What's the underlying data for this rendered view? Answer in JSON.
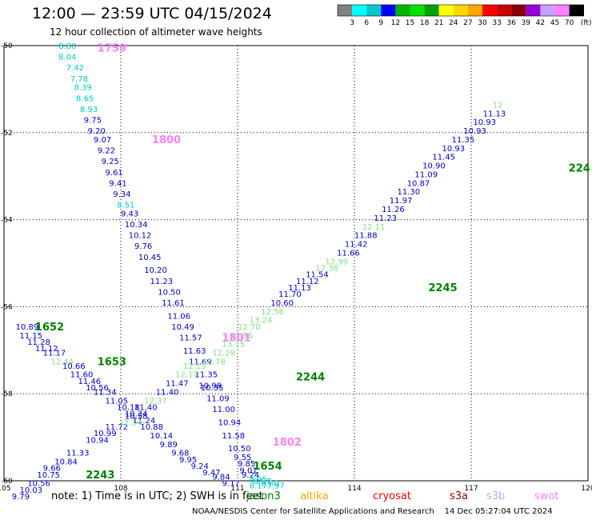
{
  "header": {
    "title": "12:00 — 23:59 UTC 04/15/2024",
    "subtitle": "12 hour collection of altimeter wave heights"
  },
  "color_scale": {
    "labels": [
      "3",
      "6",
      "9",
      "12",
      "15",
      "18",
      "21",
      "24",
      "27",
      "30",
      "33",
      "36",
      "39",
      "42",
      "45",
      "70"
    ],
    "unit": "(ft)",
    "colors": [
      "#808080",
      "#00ffff",
      "#00c8c8",
      "#0000ff",
      "#00b400",
      "#00e000",
      "#00a000",
      "#ffff00",
      "#ffd700",
      "#ffa500",
      "#ff0000",
      "#c80000",
      "#8b0000",
      "#9400d3",
      "#c8a0ff",
      "#ff80ff",
      "#000000"
    ]
  },
  "footer": {
    "note": "note:  1) Time is in UTC;  2) SWH is in feet",
    "satellites": [
      {
        "name": "jason3",
        "color": "#008000"
      },
      {
        "name": "altika",
        "color": "#ffa500"
      },
      {
        "name": "cryosat",
        "color": "#ff0000"
      },
      {
        "name": "s3a",
        "color": "#8b0000"
      },
      {
        "name": "s3b",
        "color": "#c8a0ff"
      },
      {
        "name": "swot",
        "color": "#ff80ff"
      }
    ],
    "credit": "NOAA/NESDIS Center for Satellite Applications and Research",
    "timestamp": "14 Dec 05:27:04 UTC 2024"
  },
  "chart_data": {
    "type": "scatter",
    "title": "12:00 — 23:59 UTC 04/15/2024",
    "subtitle": "12 hour collection of altimeter wave heights",
    "xlabel": "",
    "ylabel": "",
    "xlim": [
      105,
      120
    ],
    "ylim": [
      -60,
      -50
    ],
    "grid": true,
    "x_ticks": [
      "105",
      "108",
      "111",
      "114",
      "117",
      "120"
    ],
    "y_ticks": [
      "-50",
      "-52",
      "-54",
      "-56",
      "-58",
      "-60"
    ],
    "legend": "bottom",
    "passes": [
      {
        "name": "swot",
        "color": "#ff80ff",
        "time_labels": [
          {
            "text": "1759",
            "x": 107.4,
            "y": -50.05
          },
          {
            "text": "1800",
            "x": 108.8,
            "y": -52.15
          },
          {
            "text": "1801",
            "x": 110.6,
            "y": -56.7
          },
          {
            "text": "1802",
            "x": 111.9,
            "y": -59.1
          }
        ],
        "points": [
          {
            "x": 106.4,
            "y": -50.0,
            "v": "8.80",
            "c": "#00c8c8"
          },
          {
            "x": 106.4,
            "y": -50.25,
            "v": "8.04",
            "c": "#00c8c8"
          },
          {
            "x": 106.6,
            "y": -50.5,
            "v": "7.42",
            "c": "#00c8c8"
          },
          {
            "x": 106.7,
            "y": -50.75,
            "v": "7.78",
            "c": "#00c8c8"
          },
          {
            "x": 106.8,
            "y": -50.95,
            "v": "8.39",
            "c": "#00c8c8"
          },
          {
            "x": 106.85,
            "y": -51.2,
            "v": "8.65",
            "c": "#00c8c8"
          },
          {
            "x": 106.95,
            "y": -51.45,
            "v": "8.93",
            "c": "#00c8c8"
          },
          {
            "x": 107.05,
            "y": -51.7,
            "v": "9.75",
            "c": "#0000c8"
          },
          {
            "x": 107.15,
            "y": -51.95,
            "v": "9.20",
            "c": "#0000c8"
          },
          {
            "x": 107.3,
            "y": -52.15,
            "v": "9.07",
            "c": "#0000c8"
          },
          {
            "x": 107.4,
            "y": -52.4,
            "v": "9.22",
            "c": "#0000c8"
          },
          {
            "x": 107.5,
            "y": -52.65,
            "v": "9.25",
            "c": "#0000c8"
          },
          {
            "x": 107.6,
            "y": -52.9,
            "v": "9.61",
            "c": "#0000c8"
          },
          {
            "x": 107.7,
            "y": -53.15,
            "v": "9.41",
            "c": "#0000c8"
          },
          {
            "x": 107.8,
            "y": -53.4,
            "v": "9.34",
            "c": "#0000c8"
          },
          {
            "x": 107.9,
            "y": -53.65,
            "v": "8.51",
            "c": "#00c8c8"
          },
          {
            "x": 108.0,
            "y": -53.85,
            "v": "9.43",
            "c": "#0000c8"
          },
          {
            "x": 108.1,
            "y": -54.1,
            "v": "10.34",
            "c": "#0000c8"
          },
          {
            "x": 108.2,
            "y": -54.35,
            "v": "10.12",
            "c": "#0000c8"
          },
          {
            "x": 108.35,
            "y": -54.6,
            "v": "9.76",
            "c": "#0000c8"
          },
          {
            "x": 108.45,
            "y": -54.85,
            "v": "10.45",
            "c": "#0000c8"
          },
          {
            "x": 108.6,
            "y": -55.15,
            "v": "10.20",
            "c": "#0000c8"
          },
          {
            "x": 108.75,
            "y": -55.4,
            "v": "11.23",
            "c": "#0000c8"
          },
          {
            "x": 108.95,
            "y": -55.65,
            "v": "10.50",
            "c": "#0000c8"
          },
          {
            "x": 109.05,
            "y": -55.9,
            "v": "11.61",
            "c": "#0000c8"
          },
          {
            "x": 109.2,
            "y": -56.2,
            "v": "11.06",
            "c": "#0000c8"
          },
          {
            "x": 109.3,
            "y": -56.45,
            "v": "10.49",
            "c": "#0000c8"
          },
          {
            "x": 109.5,
            "y": -56.7,
            "v": "11.57",
            "c": "#0000c8"
          },
          {
            "x": 109.6,
            "y": -57.0,
            "v": "11.63",
            "c": "#0000c8"
          },
          {
            "x": 109.75,
            "y": -57.25,
            "v": "11.69",
            "c": "#0000c8"
          },
          {
            "x": 109.9,
            "y": -57.55,
            "v": "11.35",
            "c": "#0000c8"
          },
          {
            "x": 110.0,
            "y": -57.8,
            "v": "10.98",
            "c": "#0000c8"
          },
          {
            "x": 110.05,
            "y": -57.85,
            "v": "10.35",
            "c": "#0000c8"
          },
          {
            "x": 110.2,
            "y": -58.1,
            "v": "11.09",
            "c": "#0000c8"
          },
          {
            "x": 110.35,
            "y": -58.35,
            "v": "11.00",
            "c": "#0000c8"
          },
          {
            "x": 110.5,
            "y": -58.65,
            "v": "10.94",
            "c": "#0000c8"
          },
          {
            "x": 110.6,
            "y": -58.95,
            "v": "11.58",
            "c": "#0000c8"
          },
          {
            "x": 110.75,
            "y": -59.25,
            "v": "10.50",
            "c": "#0000c8"
          },
          {
            "x": 110.9,
            "y": -59.45,
            "v": "9.55",
            "c": "#0000c8"
          },
          {
            "x": 111.0,
            "y": -59.6,
            "v": "9.85",
            "c": "#0000c8"
          },
          {
            "x": 111.05,
            "y": -59.75,
            "v": "9.01",
            "c": "#0000c8"
          },
          {
            "x": 111.1,
            "y": -59.85,
            "v": "9.24",
            "c": "#0000c8"
          },
          {
            "x": 111.3,
            "y": -59.95,
            "v": "8.95",
            "c": "#00c8c8"
          },
          {
            "x": 111.4,
            "y": -60.0,
            "v": "8.67",
            "c": "#00c8c8"
          },
          {
            "x": 111.6,
            "y": -60.05,
            "v": "8.80",
            "c": "#00c8c8"
          },
          {
            "x": 111.75,
            "y": -60.1,
            "v": "7.97",
            "c": "#00c8c8"
          },
          {
            "x": 111.3,
            "y": -60.1,
            "v": "8.17",
            "c": "#00c8c8"
          }
        ]
      },
      {
        "name": "jason3-1652",
        "color": "#008000",
        "time_labels": [
          {
            "text": "1652",
            "x": 105.8,
            "y": -56.45
          },
          {
            "text": "1653",
            "x": 107.4,
            "y": -57.25
          },
          {
            "text": "1654",
            "x": 111.4,
            "y": -59.65
          }
        ],
        "points": [
          {
            "x": 105.3,
            "y": -56.45,
            "v": "10.89",
            "c": "#0000c8"
          },
          {
            "x": 105.4,
            "y": -56.65,
            "v": "11.15",
            "c": "#0000c8"
          },
          {
            "x": 105.6,
            "y": -56.8,
            "v": "11.28",
            "c": "#0000c8"
          },
          {
            "x": 105.8,
            "y": -56.95,
            "v": "11.12",
            "c": "#0000c8"
          },
          {
            "x": 106.0,
            "y": -57.05,
            "v": "11.17",
            "c": "#0000c8"
          },
          {
            "x": 106.2,
            "y": -57.25,
            "v": "12.44",
            "c": "#80e080"
          },
          {
            "x": 106.5,
            "y": -57.35,
            "v": "10.66",
            "c": "#0000c8"
          },
          {
            "x": 106.7,
            "y": -57.55,
            "v": "11.60",
            "c": "#0000c8"
          },
          {
            "x": 106.9,
            "y": -57.7,
            "v": "11.46",
            "c": "#0000c8"
          },
          {
            "x": 107.1,
            "y": -57.85,
            "v": "10.56",
            "c": "#0000c8"
          },
          {
            "x": 107.3,
            "y": -57.95,
            "v": "11.34",
            "c": "#0000c8"
          },
          {
            "x": 107.6,
            "y": -58.15,
            "v": "11.05",
            "c": "#0000c8"
          },
          {
            "x": 107.9,
            "y": -58.3,
            "v": "10.18",
            "c": "#0000c8"
          },
          {
            "x": 108.1,
            "y": -58.45,
            "v": "10.34",
            "c": "#0000c8"
          },
          {
            "x": 108.3,
            "y": -58.6,
            "v": "11.24",
            "c": "#0000c8"
          },
          {
            "x": 108.5,
            "y": -58.75,
            "v": "10.88",
            "c": "#0000c8"
          },
          {
            "x": 108.75,
            "y": -58.95,
            "v": "10.14",
            "c": "#0000c8"
          },
          {
            "x": 109.0,
            "y": -59.15,
            "v": "9.89",
            "c": "#0000c8"
          },
          {
            "x": 109.3,
            "y": -59.35,
            "v": "9.68",
            "c": "#0000c8"
          },
          {
            "x": 109.5,
            "y": -59.5,
            "v": "9.95",
            "c": "#0000c8"
          },
          {
            "x": 109.8,
            "y": -59.65,
            "v": "9.24",
            "c": "#0000c8"
          },
          {
            "x": 110.1,
            "y": -59.8,
            "v": "9.47",
            "c": "#0000c8"
          },
          {
            "x": 110.35,
            "y": -59.9,
            "v": "9.84",
            "c": "#0000c8"
          },
          {
            "x": 110.6,
            "y": -60.05,
            "v": "9.17",
            "c": "#0000c8"
          }
        ]
      },
      {
        "name": "jason3-2243",
        "color": "#008000",
        "time_labels": [
          {
            "text": "2243",
            "x": 107.1,
            "y": -59.85
          },
          {
            "text": "2244",
            "x": 112.5,
            "y": -57.6
          },
          {
            "text": "2245",
            "x": 115.9,
            "y": -55.55
          },
          {
            "text": "224",
            "x": 119.5,
            "y": -52.8
          }
        ],
        "points": [
          {
            "x": 105.2,
            "y": -60.35,
            "v": "9.79",
            "c": "#0000c8"
          },
          {
            "x": 105.4,
            "y": -60.2,
            "v": "10.03",
            "c": "#0000c8"
          },
          {
            "x": 105.6,
            "y": -60.05,
            "v": "10.56",
            "c": "#0000c8"
          },
          {
            "x": 105.85,
            "y": -59.85,
            "v": "10.75",
            "c": "#0000c8"
          },
          {
            "x": 106.0,
            "y": -59.7,
            "v": "9.66",
            "c": "#0000c8"
          },
          {
            "x": 106.3,
            "y": -59.55,
            "v": "10.84",
            "c": "#0000c8"
          },
          {
            "x": 106.6,
            "y": -59.35,
            "v": "11.33",
            "c": "#0000c8"
          },
          {
            "x": 107.1,
            "y": -59.05,
            "v": "10.94",
            "c": "#0000c8"
          },
          {
            "x": 107.3,
            "y": -58.9,
            "v": "10.99",
            "c": "#0000c8"
          },
          {
            "x": 107.6,
            "y": -58.75,
            "v": "11.72",
            "c": "#0000c8"
          },
          {
            "x": 107.95,
            "y": -58.65,
            "v": "12.14",
            "c": "#80e080"
          },
          {
            "x": 108.1,
            "y": -58.5,
            "v": "10.58",
            "c": "#0000c8"
          },
          {
            "x": 108.35,
            "y": -58.3,
            "v": "11.40",
            "c": "#0000c8"
          },
          {
            "x": 108.6,
            "y": -58.15,
            "v": "12.37",
            "c": "#80e080"
          },
          {
            "x": 108.9,
            "y": -57.95,
            "v": "11.40",
            "c": "#0000c8"
          },
          {
            "x": 109.15,
            "y": -57.75,
            "v": "11.47",
            "c": "#0000c8"
          },
          {
            "x": 109.4,
            "y": -57.55,
            "v": "12.17",
            "c": "#80e080"
          },
          {
            "x": 109.6,
            "y": -57.35,
            "v": "12.15",
            "c": "#80e080"
          },
          {
            "x": 110.1,
            "y": -57.25,
            "v": "12.78",
            "c": "#80e080"
          },
          {
            "x": 110.35,
            "y": -57.05,
            "v": "12.29",
            "c": "#80e080"
          },
          {
            "x": 110.6,
            "y": -56.85,
            "v": "13.15",
            "c": "#80e080"
          },
          {
            "x": 110.8,
            "y": -56.65,
            "v": "12.96",
            "c": "#80e080"
          },
          {
            "x": 111.0,
            "y": -56.45,
            "v": "12.70",
            "c": "#80e080"
          },
          {
            "x": 111.3,
            "y": -56.3,
            "v": "13.24",
            "c": "#80e080"
          },
          {
            "x": 111.6,
            "y": -56.1,
            "v": "12.56",
            "c": "#80e080"
          },
          {
            "x": 111.85,
            "y": -55.9,
            "v": "10.60",
            "c": "#0000c8"
          },
          {
            "x": 112.05,
            "y": -55.7,
            "v": "11.70",
            "c": "#0000c8"
          },
          {
            "x": 112.3,
            "y": -55.55,
            "v": "11.13",
            "c": "#0000c8"
          },
          {
            "x": 112.5,
            "y": -55.4,
            "v": "11.12",
            "c": "#0000c8"
          },
          {
            "x": 112.75,
            "y": -55.25,
            "v": "11.54",
            "c": "#0000c8"
          },
          {
            "x": 113.0,
            "y": -55.1,
            "v": "12.38",
            "c": "#80e080"
          },
          {
            "x": 113.25,
            "y": -54.95,
            "v": "12.99",
            "c": "#80e080"
          },
          {
            "x": 113.55,
            "y": -54.75,
            "v": "11.66",
            "c": "#0000c8"
          },
          {
            "x": 113.75,
            "y": -54.55,
            "v": "11.42",
            "c": "#0000c8"
          },
          {
            "x": 114.0,
            "y": -54.35,
            "v": "11.88",
            "c": "#0000c8"
          },
          {
            "x": 114.2,
            "y": -54.15,
            "v": "12.11",
            "c": "#80e080"
          },
          {
            "x": 114.5,
            "y": -53.95,
            "v": "11.23",
            "c": "#0000c8"
          },
          {
            "x": 114.7,
            "y": -53.75,
            "v": "11.26",
            "c": "#0000c8"
          },
          {
            "x": 114.9,
            "y": -53.55,
            "v": "11.97",
            "c": "#0000c8"
          },
          {
            "x": 115.1,
            "y": -53.35,
            "v": "11.30",
            "c": "#0000c8"
          },
          {
            "x": 115.35,
            "y": -53.15,
            "v": "10.87",
            "c": "#0000c8"
          },
          {
            "x": 115.55,
            "y": -52.95,
            "v": "11.09",
            "c": "#0000c8"
          },
          {
            "x": 115.75,
            "y": -52.75,
            "v": "10.90",
            "c": "#0000c8"
          },
          {
            "x": 116.0,
            "y": -52.55,
            "v": "11.45",
            "c": "#0000c8"
          },
          {
            "x": 116.25,
            "y": -52.35,
            "v": "10.93",
            "c": "#0000c8"
          },
          {
            "x": 116.5,
            "y": -52.15,
            "v": "11.35",
            "c": "#0000c8"
          },
          {
            "x": 116.8,
            "y": -51.95,
            "v": "10.93",
            "c": "#0000c8"
          },
          {
            "x": 117.05,
            "y": -51.75,
            "v": "10.93",
            "c": "#0000c8"
          },
          {
            "x": 117.3,
            "y": -51.55,
            "v": "11.13",
            "c": "#0000c8"
          },
          {
            "x": 117.55,
            "y": -51.35,
            "v": "12",
            "c": "#80e080"
          }
        ]
      }
    ]
  }
}
